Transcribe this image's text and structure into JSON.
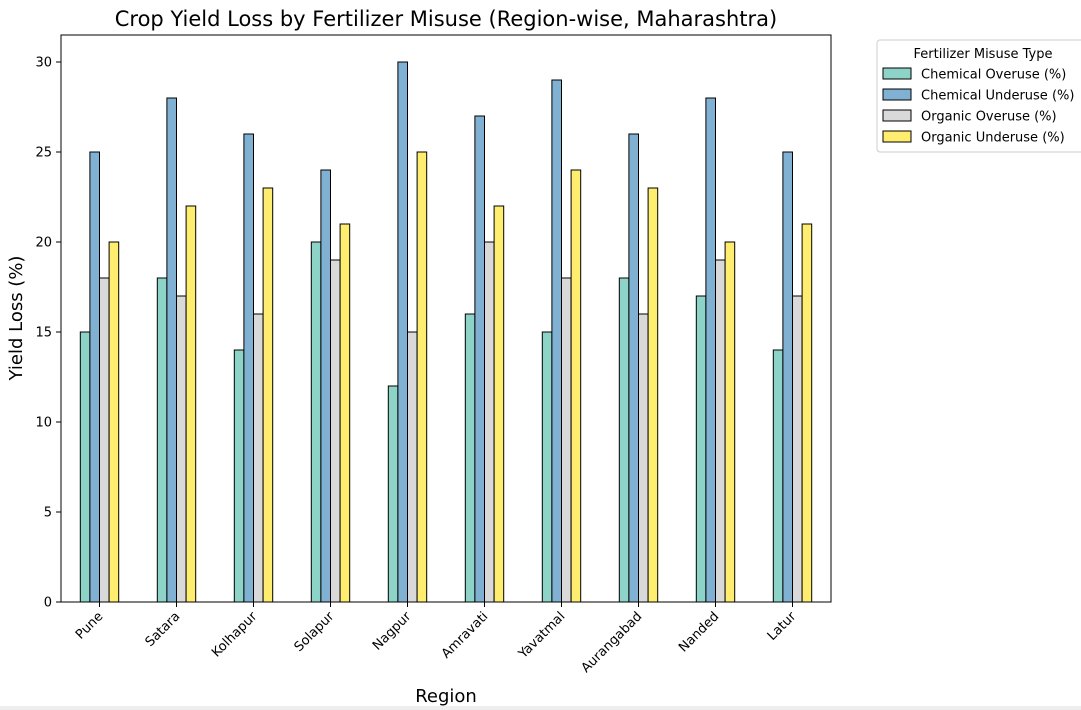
{
  "chart_data": {
    "type": "bar",
    "title": "Crop Yield Loss by Fertilizer Misuse (Region-wise, Maharashtra)",
    "xlabel": "Region",
    "ylabel": "Yield Loss (%)",
    "ylim": [
      0,
      31.5
    ],
    "yticks": [
      0,
      5,
      10,
      15,
      20,
      25,
      30
    ],
    "grid": false,
    "categories": [
      "Pune",
      "Satara",
      "Kolhapur",
      "Solapur",
      "Nagpur",
      "Amravati",
      "Yavatmal",
      "Aurangabad",
      "Nanded",
      "Latur"
    ],
    "series": [
      {
        "name": "Chemical Overuse (%)",
        "color": "#8dd3c7",
        "values": [
          15,
          18,
          14,
          20,
          12,
          16,
          15,
          18,
          17,
          14
        ]
      },
      {
        "name": "Chemical Underuse (%)",
        "color": "#80b1d3",
        "values": [
          25,
          28,
          26,
          24,
          30,
          27,
          29,
          26,
          28,
          25
        ]
      },
      {
        "name": "Organic Overuse (%)",
        "color": "#d9d9d9",
        "values": [
          18,
          17,
          16,
          19,
          15,
          20,
          18,
          16,
          19,
          17
        ]
      },
      {
        "name": "Organic Underuse (%)",
        "color": "#ffed6f",
        "values": [
          20,
          22,
          23,
          21,
          25,
          22,
          24,
          23,
          20,
          21
        ]
      }
    ],
    "legend": {
      "title": "Fertilizer Misuse Type",
      "placement": "outside-top-right"
    }
  }
}
